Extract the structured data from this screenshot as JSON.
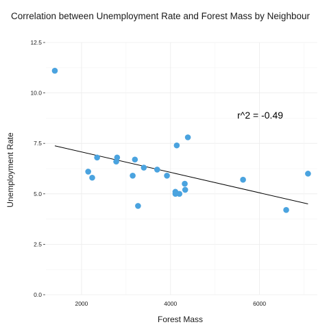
{
  "chart_data": {
    "type": "scatter",
    "title": "Correlation between Unemployment Rate and Forest Mass by Neighbour",
    "xlabel": "Forest Mass",
    "ylabel": "Unemployment Rate",
    "xlim": [
      1200,
      7300
    ],
    "ylim": [
      0,
      12.5
    ],
    "x_ticks": [
      2000,
      4000,
      6000
    ],
    "x_tick_labels": [
      "2000",
      "4000",
      "6000"
    ],
    "y_ticks": [
      0,
      2.5,
      5,
      7.5,
      10,
      12.5
    ],
    "y_tick_labels": [
      "0.0",
      "2.5",
      "5.0",
      "7.5",
      "10.0",
      "12.5"
    ],
    "grid": true,
    "point_color": "#4aa3df",
    "line_color": "#000000",
    "points": [
      {
        "x": 1400,
        "y": 11.1
      },
      {
        "x": 2150,
        "y": 6.1
      },
      {
        "x": 2240,
        "y": 5.8
      },
      {
        "x": 2350,
        "y": 6.8
      },
      {
        "x": 2780,
        "y": 6.6
      },
      {
        "x": 2800,
        "y": 6.8
      },
      {
        "x": 3150,
        "y": 5.9
      },
      {
        "x": 3200,
        "y": 6.7
      },
      {
        "x": 3270,
        "y": 4.4
      },
      {
        "x": 3400,
        "y": 6.3
      },
      {
        "x": 3700,
        "y": 6.2
      },
      {
        "x": 3920,
        "y": 5.9
      },
      {
        "x": 4110,
        "y": 5.1
      },
      {
        "x": 4110,
        "y": 5.0
      },
      {
        "x": 4140,
        "y": 7.4
      },
      {
        "x": 4200,
        "y": 5.0
      },
      {
        "x": 4320,
        "y": 5.5
      },
      {
        "x": 4330,
        "y": 5.2
      },
      {
        "x": 4390,
        "y": 7.8
      },
      {
        "x": 5630,
        "y": 5.7
      },
      {
        "x": 6600,
        "y": 4.2
      },
      {
        "x": 7090,
        "y": 6.0
      }
    ],
    "trendline": {
      "x": [
        1400,
        7090
      ],
      "y": [
        7.38,
        4.5
      ]
    },
    "annotation": {
      "text": "r^2 = -0.49",
      "x": 5500,
      "y": 8.9
    }
  }
}
